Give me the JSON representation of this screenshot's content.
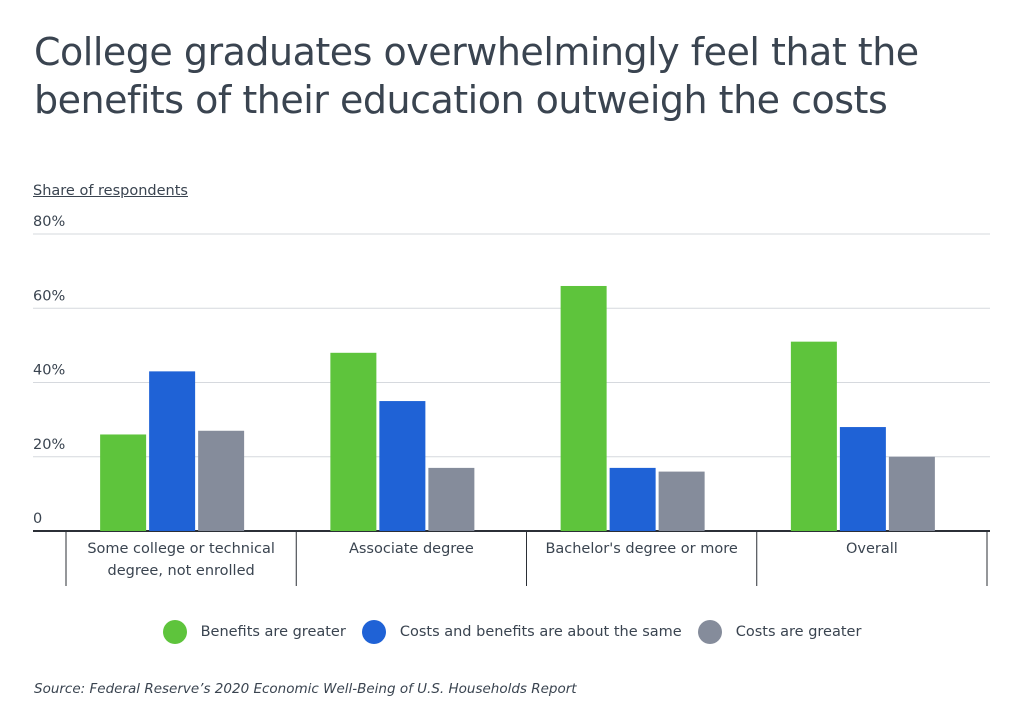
{
  "title": "College graduates overwhelmingly feel that the benefits of their education outweigh the costs",
  "source": "Source:  Federal Reserve’s 2020 Economic Well-Being of U.S. Households Report",
  "chart_data": {
    "type": "bar",
    "title": "College graduates overwhelmingly feel that the benefits of their education outweigh the costs",
    "ylabel": "Share of respondents",
    "xlabel": "",
    "ylim": [
      0,
      80
    ],
    "yticks": [
      0,
      20,
      40,
      60,
      80
    ],
    "ytick_labels": [
      "0",
      "20%",
      "40%",
      "60%",
      "80%"
    ],
    "grid": true,
    "legend_position": "bottom",
    "categories": [
      "Some college or technical degree, not enrolled",
      "Associate degree",
      "Bachelor's degree or more",
      "Overall"
    ],
    "category_lines": [
      [
        "Some college or technical",
        "degree, not enrolled"
      ],
      [
        "Associate degree"
      ],
      [
        "Bachelor's degree or more"
      ],
      [
        "Overall"
      ]
    ],
    "series": [
      {
        "name": "Benefits are greater",
        "color": "#5ec43c",
        "values": [
          26,
          48,
          66,
          51
        ]
      },
      {
        "name": "Costs and benefits are about the same",
        "color": "#1f62d6",
        "values": [
          43,
          35,
          17,
          28
        ]
      },
      {
        "name": "Costs are greater",
        "color": "#858c9b",
        "values": [
          27,
          17,
          16,
          20
        ]
      }
    ]
  }
}
